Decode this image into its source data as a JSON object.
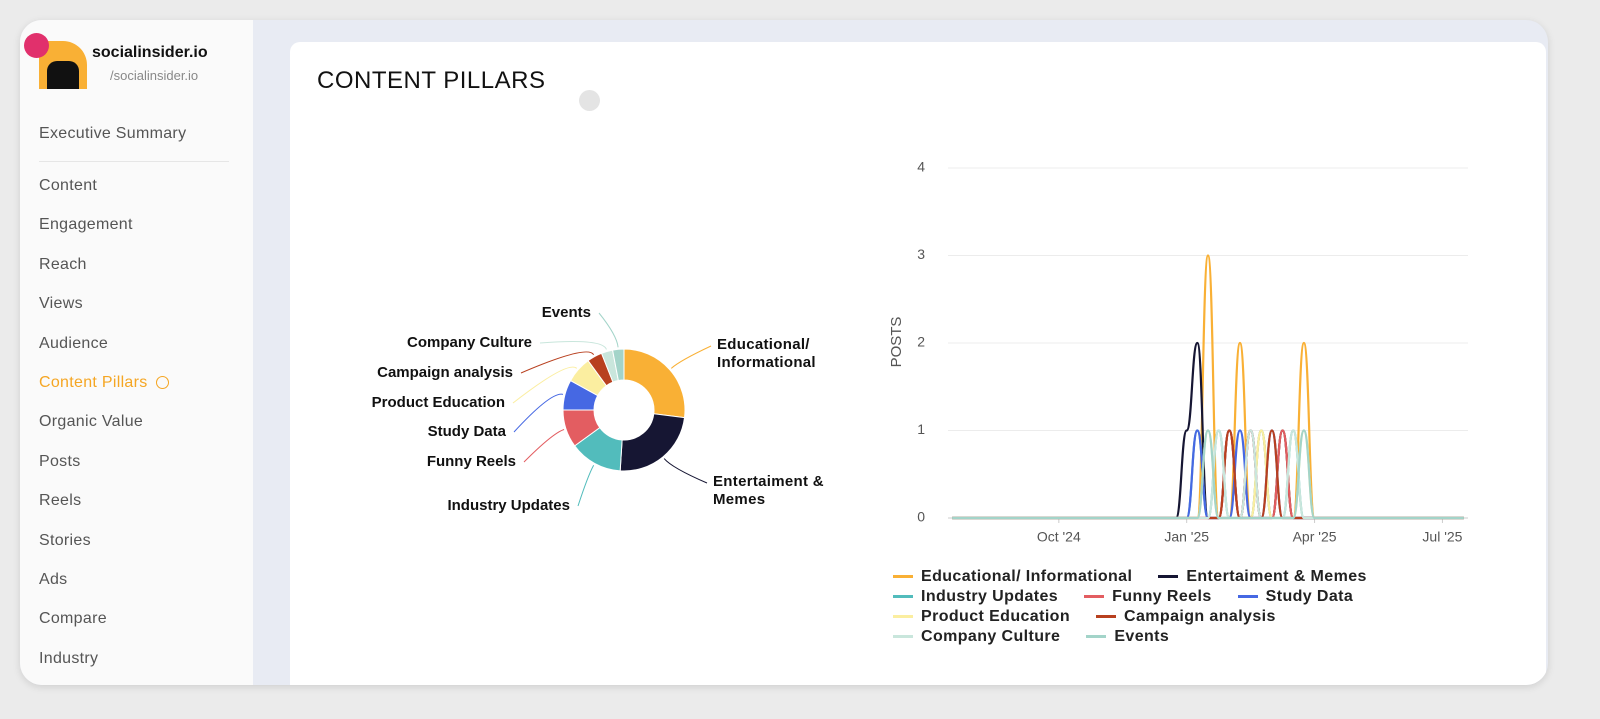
{
  "sidebar": {
    "profile": {
      "name": "socialinsider.io",
      "handle": "/socialinsider.io"
    },
    "nav": [
      "Executive Summary",
      "Content",
      "Engagement",
      "Reach",
      "Views",
      "Audience",
      "Content Pillars",
      "Organic Value",
      "Posts",
      "Reels",
      "Stories",
      "Ads",
      "Compare",
      "Industry"
    ],
    "active_index": 6
  },
  "header": {
    "title": "CONTENT PILLARS"
  },
  "chart_data": [
    {
      "type": "pie",
      "donut": true,
      "categories": [
        "Educational/ Informational",
        "Entertaiment & Memes",
        "Industry Updates",
        "Funny Reels",
        "Study Data",
        "Product Education",
        "Campaign analysis",
        "Company Culture",
        "Events"
      ],
      "values": [
        27,
        24,
        14,
        10,
        8,
        7,
        4,
        3,
        3
      ],
      "colors": [
        "#f9b035",
        "#161633",
        "#52bcbc",
        "#e35d61",
        "#4668e3",
        "#fbeea0",
        "#b8401f",
        "#c9e6dc",
        "#a3d4c9"
      ]
    },
    {
      "type": "line",
      "y_label": "POSTS",
      "grid": true,
      "x": [
        0.5,
        3,
        5.5,
        5.75,
        6,
        6.25,
        6.5,
        6.75,
        7,
        7.25,
        7.5,
        7.75,
        8,
        8.25,
        8.5,
        8.75,
        9,
        12.5
      ],
      "xlim": [
        0.4,
        12.6
      ],
      "xticks": [
        {
          "value": 3,
          "label": "Oct '24"
        },
        {
          "value": 6,
          "label": "Jan '25"
        },
        {
          "value": 9,
          "label": "Apr '25"
        },
        {
          "value": 12,
          "label": "Jul '25"
        }
      ],
      "ylim": [
        0,
        4
      ],
      "yticks": [
        0,
        1,
        2,
        3,
        4
      ],
      "series": [
        {
          "name": "Educational/ Informational",
          "color": "#f9b035",
          "values": [
            0,
            0,
            0,
            0,
            0,
            0,
            3,
            0,
            0,
            2,
            0,
            1,
            0,
            1,
            0,
            2,
            0,
            0
          ]
        },
        {
          "name": "Entertaiment & Memes",
          "color": "#161633",
          "values": [
            0,
            0,
            0,
            0,
            1,
            2,
            0,
            0,
            1,
            0,
            1,
            0,
            0,
            1,
            0,
            0,
            0,
            0
          ]
        },
        {
          "name": "Industry Updates",
          "color": "#52bcbc",
          "values": [
            0,
            0,
            0,
            0,
            0,
            1,
            0,
            1,
            0,
            0,
            0,
            1,
            0,
            0,
            1,
            0,
            0,
            0
          ]
        },
        {
          "name": "Funny Reels",
          "color": "#e35d61",
          "values": [
            0,
            0,
            0,
            0,
            0,
            0,
            0,
            0,
            1,
            0,
            1,
            0,
            0,
            1,
            0,
            0,
            0,
            0
          ]
        },
        {
          "name": "Study Data",
          "color": "#4668e3",
          "values": [
            0,
            0,
            0,
            0,
            0,
            1,
            0,
            0,
            0,
            1,
            0,
            0,
            1,
            0,
            0,
            0,
            0,
            0
          ]
        },
        {
          "name": "Product Education",
          "color": "#fbeea0",
          "values": [
            0,
            0,
            0,
            0,
            0,
            0,
            1,
            0,
            0,
            0,
            0,
            1,
            0,
            0,
            0,
            1,
            0,
            0
          ]
        },
        {
          "name": "Campaign analysis",
          "color": "#b8401f",
          "values": [
            0,
            0,
            0,
            0,
            0,
            0,
            0,
            0,
            1,
            0,
            0,
            0,
            1,
            0,
            0,
            0,
            0,
            0
          ]
        },
        {
          "name": "Company Culture",
          "color": "#c9e6dc",
          "values": [
            0,
            0,
            0,
            0,
            0,
            0,
            0,
            1,
            0,
            0,
            1,
            0,
            0,
            0,
            1,
            0,
            0,
            0
          ]
        },
        {
          "name": "Events",
          "color": "#a3d4c9",
          "values": [
            0,
            0,
            0,
            0,
            0,
            0,
            1,
            0,
            0,
            0,
            0,
            0,
            0,
            0,
            0,
            1,
            0,
            0
          ]
        }
      ]
    }
  ]
}
